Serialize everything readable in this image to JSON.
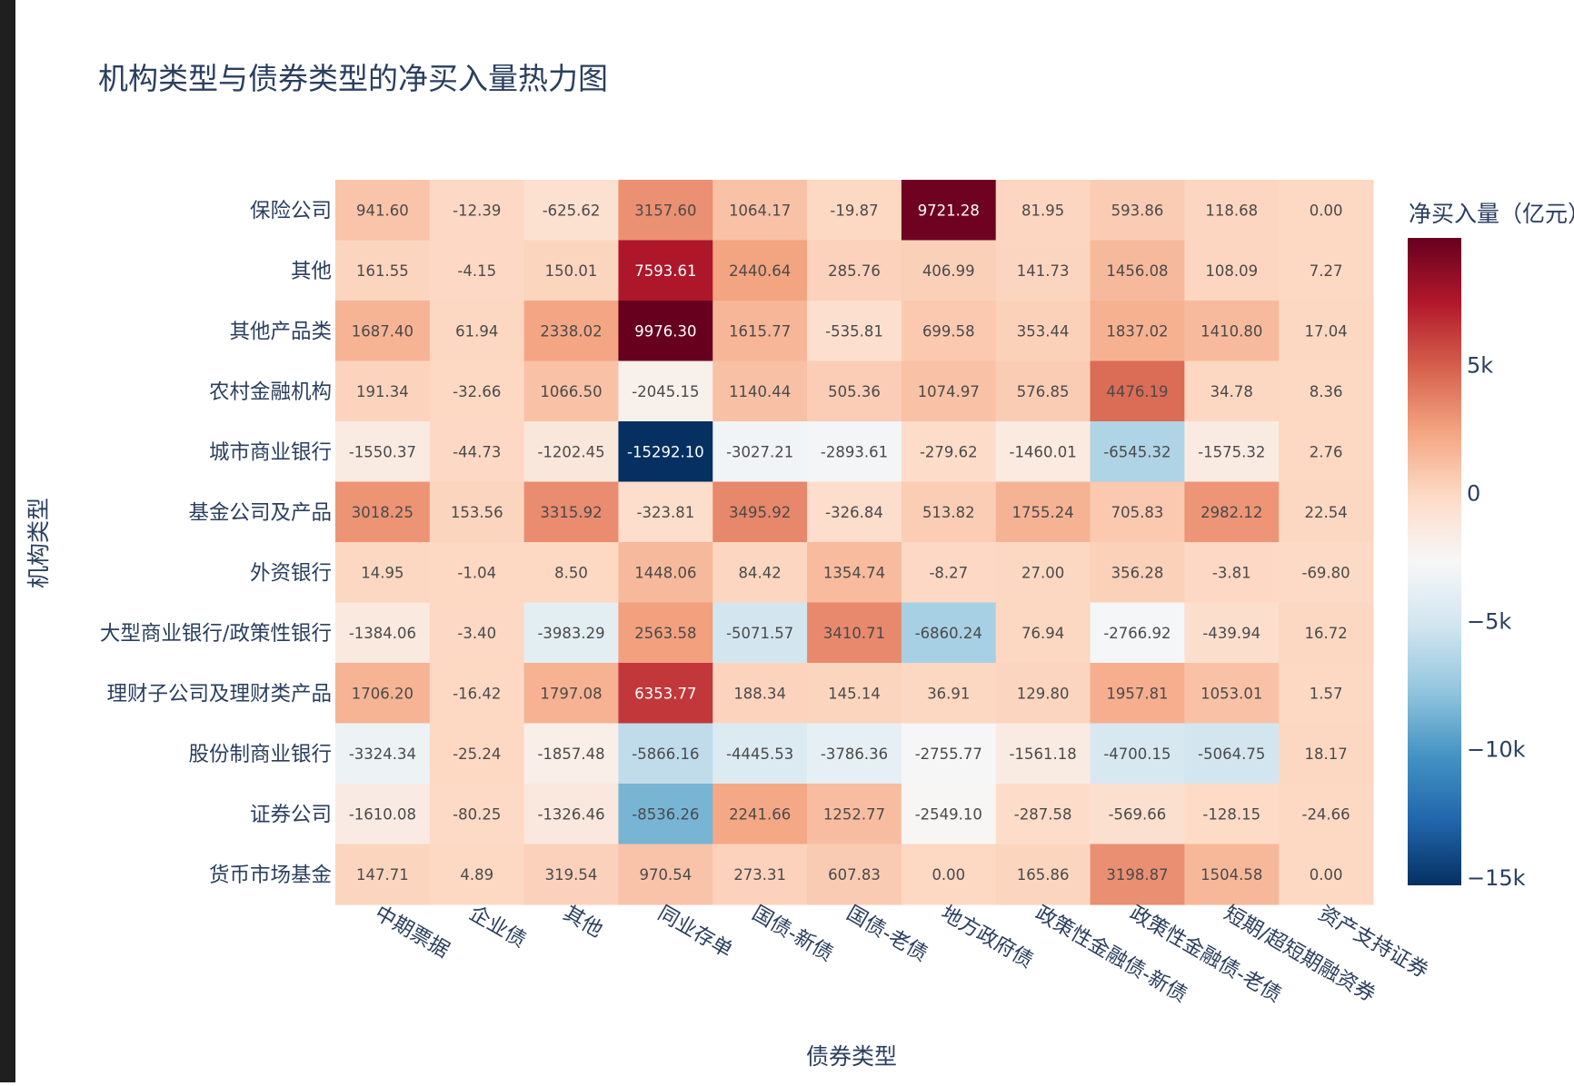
{
  "chart_data": {
    "type": "heatmap",
    "title": "机构类型与债券类型的净买入量热力图",
    "xlabel": "债券类型",
    "ylabel": "机构类型",
    "colorbar_title": "净买入量（亿元）",
    "colorscale": "RdBu_reversed",
    "zmin": -15292.1,
    "zmax": 9976.3,
    "colorbar_ticks": [
      {
        "value": 5000,
        "label": "5k"
      },
      {
        "value": 0,
        "label": "0"
      },
      {
        "value": -5000,
        "label": "−5k"
      },
      {
        "value": -10000,
        "label": "−10k"
      },
      {
        "value": -15000,
        "label": "−15k"
      }
    ],
    "x_categories": [
      "中期票据",
      "企业债",
      "其他",
      "同业存单",
      "国债-新债",
      "国债-老债",
      "地方政府债",
      "政策性金融债-新债",
      "政策性金融债-老债",
      "短期/超短期融资券",
      "资产支持证券"
    ],
    "y_categories": [
      "保险公司",
      "其他",
      "其他产品类",
      "农村金融机构",
      "城市商业银行",
      "基金公司及产品",
      "外资银行",
      "大型商业银行/政策性银行",
      "理财子公司及理财类产品",
      "股份制商业银行",
      "证券公司",
      "货币市场基金"
    ],
    "values": [
      [
        941.6,
        -12.39,
        -625.62,
        3157.6,
        1064.17,
        -19.87,
        9721.28,
        81.95,
        593.86,
        118.68,
        0.0
      ],
      [
        161.55,
        -4.15,
        150.01,
        7593.61,
        2440.64,
        285.76,
        406.99,
        141.73,
        1456.08,
        108.09,
        7.27
      ],
      [
        1687.4,
        61.94,
        2338.02,
        9976.3,
        1615.77,
        -535.81,
        699.58,
        353.44,
        1837.02,
        1410.8,
        17.04
      ],
      [
        191.34,
        -32.66,
        1066.5,
        -2045.15,
        1140.44,
        505.36,
        1074.97,
        576.85,
        4476.19,
        34.78,
        8.36
      ],
      [
        -1550.37,
        -44.73,
        -1202.45,
        -15292.1,
        -3027.21,
        -2893.61,
        -279.62,
        -1460.01,
        -6545.32,
        -1575.32,
        2.76
      ],
      [
        3018.25,
        153.56,
        3315.92,
        -323.81,
        3495.92,
        -326.84,
        513.82,
        1755.24,
        705.83,
        2982.12,
        22.54
      ],
      [
        14.95,
        -1.04,
        8.5,
        1448.06,
        84.42,
        1354.74,
        -8.27,
        27.0,
        356.28,
        -3.81,
        -69.8
      ],
      [
        -1384.06,
        -3.4,
        -3983.29,
        2563.58,
        -5071.57,
        3410.71,
        -6860.24,
        76.94,
        -2766.92,
        -439.94,
        16.72
      ],
      [
        1706.2,
        -16.42,
        1797.08,
        6353.77,
        188.34,
        145.14,
        36.91,
        129.8,
        1957.81,
        1053.01,
        1.57
      ],
      [
        -3324.34,
        -25.24,
        -1857.48,
        -5866.16,
        -4445.53,
        -3786.36,
        -2755.77,
        -1561.18,
        -4700.15,
        -5064.75,
        18.17
      ],
      [
        -1610.08,
        -80.25,
        -1326.46,
        -8536.26,
        2241.66,
        1252.77,
        -2549.1,
        -287.58,
        -569.66,
        -128.15,
        -24.66
      ],
      [
        147.71,
        4.89,
        319.54,
        970.54,
        273.31,
        607.83,
        0.0,
        165.86,
        3198.87,
        1504.58,
        0.0
      ]
    ]
  }
}
